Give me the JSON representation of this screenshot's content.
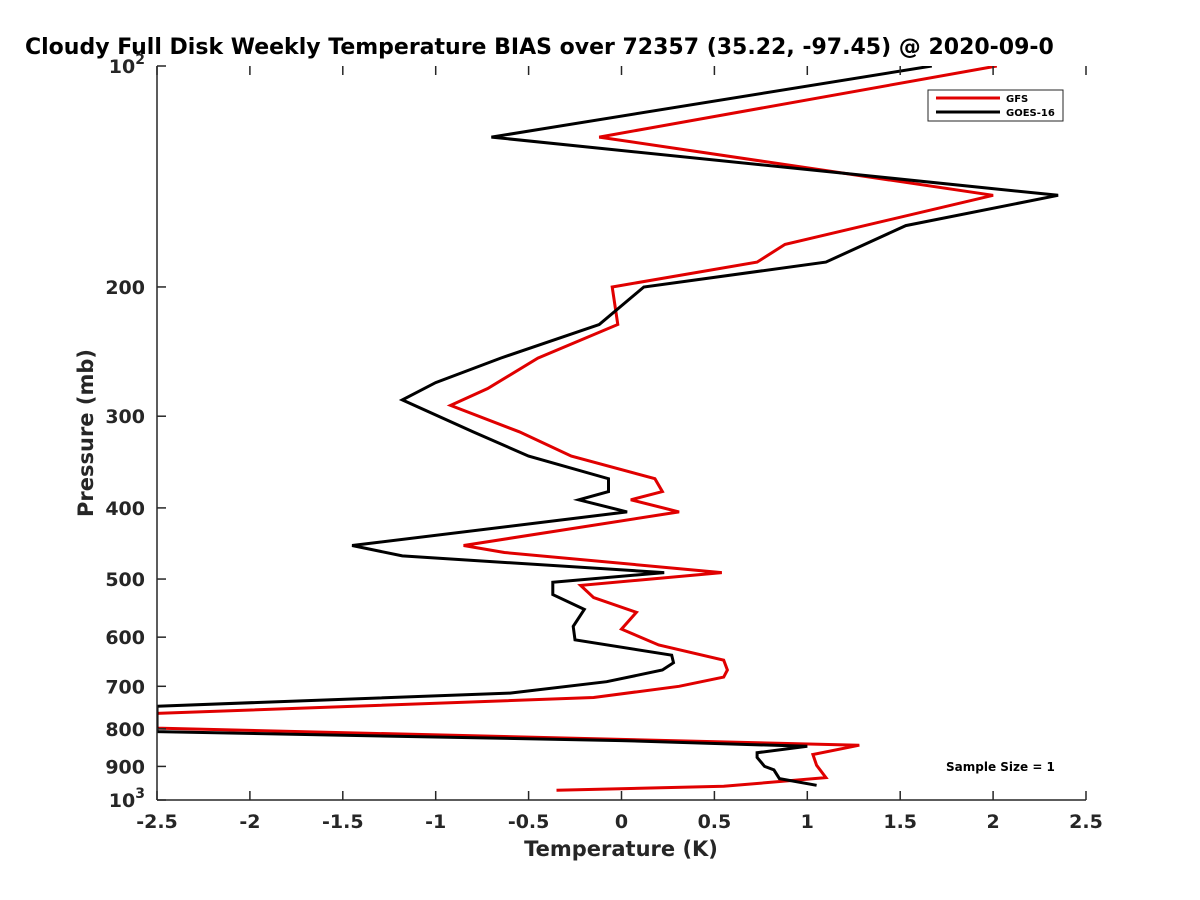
{
  "chart_data": {
    "type": "line",
    "title": "Cloudy Full Disk Weekly Temperature BIAS over 72357 (35.22, -97.45) @ 2020-09-0",
    "xlabel": "Temperature (K)",
    "ylabel": "Pressure (mb)",
    "xlim": [
      -2.5,
      2.5
    ],
    "ylim": [
      100,
      1000
    ],
    "y_scale": "log",
    "y_reversed": true,
    "grid": false,
    "legend_position": "top-right",
    "x_ticks": [
      "-2.5",
      "-2",
      "-1.5",
      "-1",
      "-0.5",
      "0",
      "0.5",
      "1",
      "1.5",
      "2",
      "2.5"
    ],
    "x_tick_values": [
      -2.5,
      -2,
      -1.5,
      -1,
      -0.5,
      0,
      0.5,
      1,
      1.5,
      2,
      2.5
    ],
    "y_tick_values": [
      100,
      200,
      300,
      400,
      500,
      600,
      700,
      800,
      900,
      1000
    ],
    "y_ticks": [
      {
        "base": "10",
        "exp": "2"
      },
      {
        "base": "200",
        "exp": ""
      },
      {
        "base": "300",
        "exp": ""
      },
      {
        "base": "400",
        "exp": ""
      },
      {
        "base": "500",
        "exp": ""
      },
      {
        "base": "600",
        "exp": ""
      },
      {
        "base": "700",
        "exp": ""
      },
      {
        "base": "800",
        "exp": ""
      },
      {
        "base": "900",
        "exp": ""
      },
      {
        "base": "10",
        "exp": "3"
      }
    ],
    "annotation": "Sample Size = 1",
    "series": [
      {
        "name": "GFS",
        "color": "#e00000",
        "points": [
          [
            2.02,
            100
          ],
          [
            -0.12,
            125
          ],
          [
            2.0,
            150
          ],
          [
            0.88,
            175
          ],
          [
            0.73,
            185
          ],
          [
            -0.05,
            200
          ],
          [
            -0.02,
            225
          ],
          [
            -0.45,
            250
          ],
          [
            -0.72,
            275
          ],
          [
            -0.92,
            290
          ],
          [
            -0.55,
            315
          ],
          [
            -0.27,
            340
          ],
          [
            0.18,
            365
          ],
          [
            0.22,
            380
          ],
          [
            0.05,
            390
          ],
          [
            0.31,
            405
          ],
          [
            -0.85,
            450
          ],
          [
            -0.63,
            460
          ],
          [
            0.54,
            490
          ],
          [
            -0.22,
            510
          ],
          [
            -0.15,
            530
          ],
          [
            0.08,
            555
          ],
          [
            0.0,
            585
          ],
          [
            0.2,
            615
          ],
          [
            0.55,
            645
          ],
          [
            0.57,
            665
          ],
          [
            0.55,
            680
          ],
          [
            0.31,
            700
          ],
          [
            -0.15,
            725
          ],
          [
            -2.5,
            762
          ],
          [
            -2.5,
            798
          ],
          [
            1.28,
            842
          ],
          [
            1.03,
            867
          ],
          [
            1.05,
            897
          ],
          [
            1.1,
            932
          ],
          [
            0.55,
            958
          ],
          [
            -0.35,
            970
          ]
        ]
      },
      {
        "name": "GOES-16",
        "color": "#000000",
        "points": [
          [
            1.67,
            100
          ],
          [
            -0.7,
            125
          ],
          [
            2.35,
            150
          ],
          [
            1.53,
            165
          ],
          [
            1.1,
            185
          ],
          [
            0.12,
            200
          ],
          [
            -0.12,
            225
          ],
          [
            -0.65,
            250
          ],
          [
            -1.0,
            270
          ],
          [
            -1.18,
            285
          ],
          [
            -0.8,
            315
          ],
          [
            -0.5,
            340
          ],
          [
            -0.07,
            365
          ],
          [
            -0.07,
            380
          ],
          [
            -0.23,
            390
          ],
          [
            0.03,
            405
          ],
          [
            -1.45,
            450
          ],
          [
            -1.18,
            465
          ],
          [
            0.23,
            490
          ],
          [
            -0.37,
            505
          ],
          [
            -0.37,
            525
          ],
          [
            -0.2,
            550
          ],
          [
            -0.26,
            580
          ],
          [
            -0.25,
            605
          ],
          [
            0.27,
            635
          ],
          [
            0.28,
            650
          ],
          [
            0.22,
            665
          ],
          [
            -0.08,
            690
          ],
          [
            -0.6,
            715
          ],
          [
            -2.5,
            745
          ],
          [
            -2.5,
            807
          ],
          [
            0.0,
            830
          ],
          [
            1.0,
            845
          ],
          [
            0.73,
            862
          ],
          [
            0.73,
            875
          ],
          [
            0.77,
            900
          ],
          [
            0.82,
            910
          ],
          [
            0.85,
            935
          ],
          [
            1.05,
            955
          ]
        ]
      }
    ]
  }
}
